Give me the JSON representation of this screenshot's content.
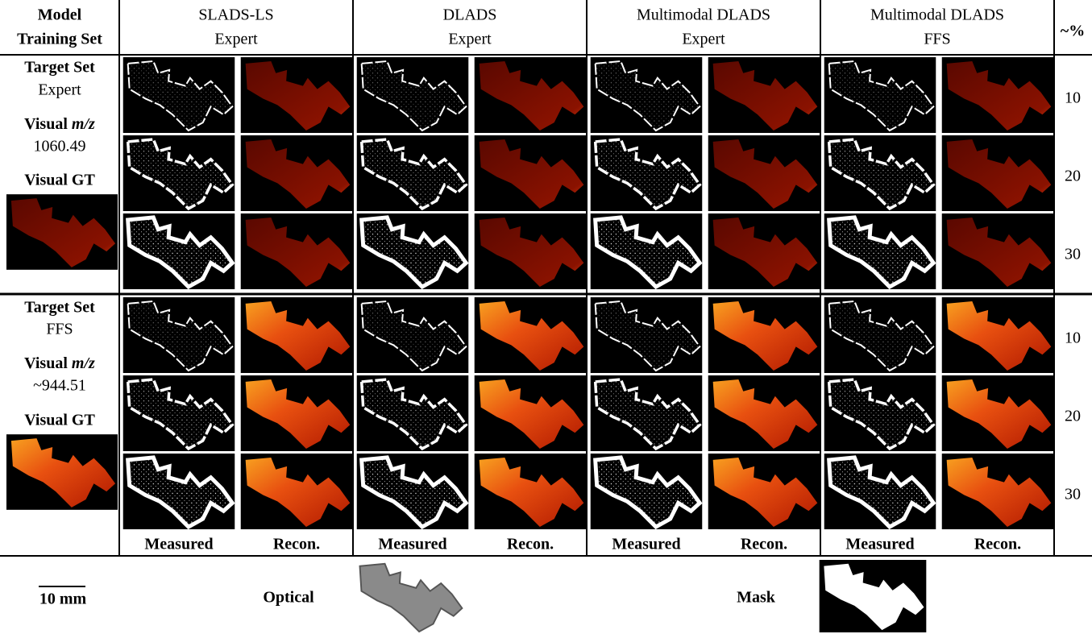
{
  "header": {
    "corner": [
      "Model",
      "Training Set"
    ],
    "columns": [
      {
        "method": "SLADS-LS",
        "training": "Expert"
      },
      {
        "method": "DLADS",
        "training": "Expert"
      },
      {
        "method": "Multimodal DLADS",
        "training": "Expert"
      },
      {
        "method": "Multimodal DLADS",
        "training": "FFS"
      }
    ],
    "percent": "~%"
  },
  "blocks": [
    {
      "target_label": "Target Set",
      "target": "Expert",
      "visual_label": "Visual",
      "mz_unit": "m/z",
      "mz": "1060.49",
      "gt_label": "Visual GT",
      "percents": [
        10,
        20,
        30
      ]
    },
    {
      "target_label": "Target Set",
      "target": "FFS",
      "visual_label": "Visual",
      "mz_unit": "m/z",
      "mz": "~944.51",
      "gt_label": "Visual GT",
      "percents": [
        10,
        20,
        30
      ]
    }
  ],
  "footer": [
    "Measured",
    "Recon.",
    "Measured",
    "Recon.",
    "Measured",
    "Recon.",
    "Measured",
    "Recon."
  ],
  "bottom": {
    "scale": "10 mm",
    "optical": "Optical",
    "mask": "Mask"
  }
}
